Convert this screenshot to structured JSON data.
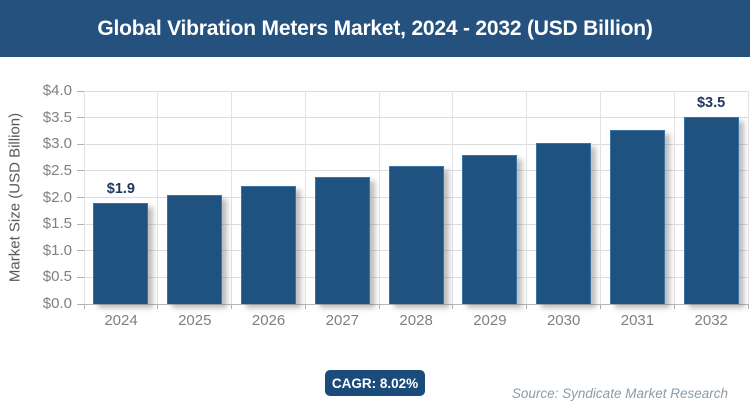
{
  "header": {
    "title": "Global Vibration Meters Market, 2024 - 2032 (USD Billion)"
  },
  "chart_data": {
    "type": "bar",
    "title": "Global Vibration Meters Market, 2024 - 2032 (USD Billion)",
    "categories": [
      "2024",
      "2025",
      "2026",
      "2027",
      "2028",
      "2029",
      "2030",
      "2031",
      "2032"
    ],
    "values": [
      1.9,
      2.05,
      2.22,
      2.39,
      2.59,
      2.79,
      3.02,
      3.26,
      3.52
    ],
    "point_labels": [
      {
        "index": 0,
        "text": "$1.9"
      },
      {
        "index": 8,
        "text": "$3.5"
      }
    ],
    "xlabel": "",
    "ylabel": "Market Size (USD Billion)",
    "ylim": [
      0,
      4.0
    ],
    "ytick_step": 0.5,
    "ytick_labels": [
      "$0.0",
      "$0.5",
      "$1.0",
      "$1.5",
      "$2.0",
      "$2.5",
      "$3.0",
      "$3.5",
      "$4.0"
    ],
    "grid": true,
    "legend_position": "none",
    "bar_color": "#20527F"
  },
  "footer": {
    "cagr_label": "CAGR: 8.02%",
    "source": "Source: Syndicate Market Research"
  },
  "colors": {
    "banner_bg": "#24517E",
    "bar_fill": "#20527F",
    "badge_bg": "#1B4B7B",
    "gridline": "#DCDCDC",
    "axis_line": "#B7B7B7",
    "tick_text": "#808080",
    "axis_title_text": "#595959",
    "data_label_text": "#1F3960",
    "source_text": "#8C9BA6"
  }
}
